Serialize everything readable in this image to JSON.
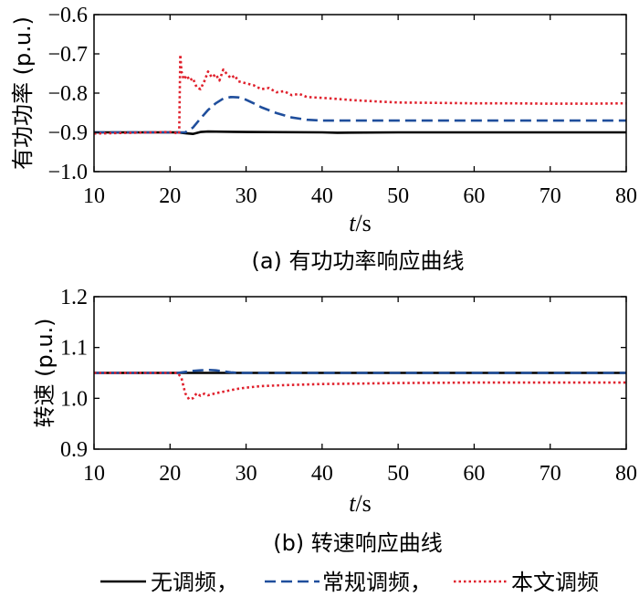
{
  "legend": {
    "entries": [
      {
        "label": "无调频，",
        "color": "#000000",
        "style": "solid"
      },
      {
        "label": "常规调频，",
        "color": "#1f4e9c",
        "style": "dashed"
      },
      {
        "label": "本文调频",
        "color": "#e0202c",
        "style": "dotted"
      }
    ]
  },
  "chart_data": [
    {
      "type": "line",
      "caption": "(a)  有功功率响应曲线",
      "xlabel_italic": "t",
      "xlabel_unit": "/s",
      "ylabel": "有功功率  (p.u.)",
      "xlim": [
        10,
        80
      ],
      "ylim": [
        -1.0,
        -0.6
      ],
      "xticks": [
        10,
        20,
        30,
        40,
        50,
        60,
        70,
        80
      ],
      "xtick_labels": [
        "10",
        "20",
        "30",
        "40",
        "50",
        "60",
        "70",
        "80"
      ],
      "yticks": [
        -1.0,
        -0.9,
        -0.8,
        -0.7,
        -0.6
      ],
      "ytick_labels": [
        "−1.0",
        "−0.9",
        "−0.8",
        "−0.7",
        "−0.6"
      ],
      "series": [
        {
          "color": "#000000",
          "style": "solid",
          "x": [
            10,
            21,
            22,
            23,
            24,
            25,
            30,
            40,
            42,
            50,
            60,
            70,
            80
          ],
          "y": [
            -0.9,
            -0.9,
            -0.902,
            -0.904,
            -0.899,
            -0.898,
            -0.899,
            -0.9,
            -0.901,
            -0.9,
            -0.9,
            -0.9,
            -0.9
          ]
        },
        {
          "color": "#1f4e9c",
          "style": "dashed",
          "x": [
            10,
            21,
            22,
            23,
            24,
            25,
            26,
            27,
            28,
            29,
            30,
            31,
            32,
            34,
            36,
            38,
            40,
            45,
            50,
            60,
            70,
            80
          ],
          "y": [
            -0.9,
            -0.9,
            -0.9,
            -0.888,
            -0.865,
            -0.843,
            -0.826,
            -0.814,
            -0.81,
            -0.811,
            -0.817,
            -0.826,
            -0.836,
            -0.851,
            -0.862,
            -0.868,
            -0.87,
            -0.87,
            -0.87,
            -0.87,
            -0.87,
            -0.87
          ]
        },
        {
          "color": "#e0202c",
          "style": "dotted",
          "x": [
            10,
            20,
            21.2,
            21.35,
            21.5,
            21.8,
            22.2,
            22.6,
            23,
            23.5,
            24,
            24.5,
            25,
            25.5,
            26,
            26.5,
            27,
            27.5,
            28,
            28.5,
            29,
            30,
            31,
            32,
            33,
            34,
            35,
            36,
            37,
            38,
            40,
            42,
            44,
            46,
            48,
            50,
            55,
            60,
            65,
            70,
            75,
            80
          ],
          "y": [
            -0.903,
            -0.899,
            -0.903,
            -0.702,
            -0.745,
            -0.765,
            -0.755,
            -0.768,
            -0.762,
            -0.785,
            -0.79,
            -0.77,
            -0.745,
            -0.76,
            -0.752,
            -0.768,
            -0.74,
            -0.752,
            -0.762,
            -0.755,
            -0.77,
            -0.775,
            -0.78,
            -0.79,
            -0.787,
            -0.798,
            -0.795,
            -0.805,
            -0.802,
            -0.81,
            -0.812,
            -0.815,
            -0.818,
            -0.82,
            -0.822,
            -0.824,
            -0.825,
            -0.826,
            -0.826,
            -0.827,
            -0.827,
            -0.826
          ]
        }
      ]
    },
    {
      "type": "line",
      "caption": "(b)  转速响应曲线",
      "xlabel_italic": "t",
      "xlabel_unit": "/s",
      "ylabel": "转速  (p.u.)",
      "xlim": [
        10,
        80
      ],
      "ylim": [
        0.9,
        1.2
      ],
      "xticks": [
        10,
        20,
        30,
        40,
        50,
        60,
        70,
        80
      ],
      "xtick_labels": [
        "10",
        "20",
        "30",
        "40",
        "50",
        "60",
        "70",
        "80"
      ],
      "yticks": [
        0.9,
        1.0,
        1.1,
        1.2
      ],
      "ytick_labels": [
        "0.9",
        "1.0",
        "1.1",
        "1.2"
      ],
      "series": [
        {
          "color": "#000000",
          "style": "solid",
          "x": [
            10,
            80
          ],
          "y": [
            1.05,
            1.05
          ]
        },
        {
          "color": "#1f4e9c",
          "style": "dashed",
          "x": [
            10,
            21,
            22,
            23,
            24,
            25,
            26,
            27,
            28,
            29,
            30,
            35,
            40,
            50,
            60,
            70,
            80
          ],
          "y": [
            1.05,
            1.05,
            1.052,
            1.054,
            1.055,
            1.056,
            1.055,
            1.053,
            1.051,
            1.05,
            1.05,
            1.05,
            1.05,
            1.05,
            1.05,
            1.05,
            1.05
          ]
        },
        {
          "color": "#e0202c",
          "style": "dotted",
          "x": [
            10,
            21,
            21.5,
            22,
            22.5,
            23,
            23.5,
            24,
            24.5,
            25,
            26,
            27,
            28,
            29,
            30,
            32,
            35,
            40,
            45,
            50,
            60,
            70,
            80
          ],
          "y": [
            1.05,
            1.05,
            1.04,
            1.01,
            0.998,
            1.0,
            1.01,
            1.005,
            1.009,
            1.006,
            1.01,
            1.013,
            1.016,
            1.019,
            1.021,
            1.024,
            1.026,
            1.028,
            1.029,
            1.03,
            1.031,
            1.031,
            1.031
          ]
        }
      ]
    }
  ]
}
